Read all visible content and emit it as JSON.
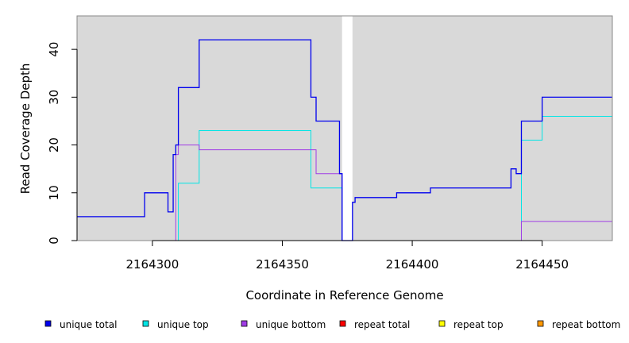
{
  "chart_data": {
    "type": "line",
    "xlabel": "Coordinate in Reference Genome",
    "ylabel": "Read Coverage Depth",
    "xlim": [
      2164271,
      2164477
    ],
    "ylim": [
      0,
      47
    ],
    "x_ticks": [
      2164300,
      2164350,
      2164400,
      2164450
    ],
    "y_ticks": [
      0,
      10,
      20,
      30,
      40
    ],
    "gap": [
      2164373,
      2164377
    ],
    "colors": {
      "background": "#d9d9d9",
      "gap": "#ffffff",
      "unique_total": "#0000ee",
      "unique_top": "#00e5e5",
      "unique_bottom": "#a03ce6",
      "repeat_total": "#ff0000",
      "repeat_top": "#ffff00",
      "repeat_bottom": "#ff9900"
    },
    "series": [
      {
        "name": "unique total",
        "color": "#0000ee",
        "width": 1.3,
        "points": [
          [
            2164271,
            5
          ],
          [
            2164297,
            5
          ],
          [
            2164297,
            10
          ],
          [
            2164306,
            10
          ],
          [
            2164306,
            6
          ],
          [
            2164308,
            6
          ],
          [
            2164308,
            18
          ],
          [
            2164309,
            18
          ],
          [
            2164309,
            20
          ],
          [
            2164310,
            20
          ],
          [
            2164310,
            32
          ],
          [
            2164318,
            32
          ],
          [
            2164318,
            42
          ],
          [
            2164361,
            42
          ],
          [
            2164361,
            30
          ],
          [
            2164363,
            30
          ],
          [
            2164363,
            25
          ],
          [
            2164372,
            25
          ],
          [
            2164372,
            14
          ],
          [
            2164373,
            14
          ],
          [
            2164373,
            0
          ],
          [
            2164377,
            0
          ],
          [
            2164377,
            8
          ],
          [
            2164378,
            8
          ],
          [
            2164378,
            9
          ],
          [
            2164394,
            9
          ],
          [
            2164394,
            10
          ],
          [
            2164407,
            10
          ],
          [
            2164407,
            11
          ],
          [
            2164438,
            11
          ],
          [
            2164438,
            15
          ],
          [
            2164440,
            15
          ],
          [
            2164440,
            14
          ],
          [
            2164442,
            14
          ],
          [
            2164442,
            25
          ],
          [
            2164450,
            25
          ],
          [
            2164450,
            30
          ],
          [
            2164477,
            30
          ]
        ]
      },
      {
        "name": "unique top",
        "color": "#00e5e5",
        "width": 1,
        "points": [
          [
            2164271,
            0
          ],
          [
            2164310,
            0
          ],
          [
            2164310,
            12
          ],
          [
            2164318,
            12
          ],
          [
            2164318,
            23
          ],
          [
            2164361,
            23
          ],
          [
            2164361,
            11
          ],
          [
            2164373,
            11
          ],
          [
            2164373,
            0
          ],
          [
            2164442,
            0
          ],
          [
            2164442,
            21
          ],
          [
            2164450,
            21
          ],
          [
            2164450,
            26
          ],
          [
            2164477,
            26
          ]
        ]
      },
      {
        "name": "unique bottom",
        "color": "#a03ce6",
        "width": 1,
        "points": [
          [
            2164309,
            0
          ],
          [
            2164309,
            18
          ],
          [
            2164310,
            18
          ],
          [
            2164310,
            20
          ],
          [
            2164318,
            20
          ],
          [
            2164318,
            19
          ],
          [
            2164363,
            19
          ],
          [
            2164363,
            14
          ],
          [
            2164373,
            14
          ],
          [
            2164373,
            0
          ],
          [
            2164442,
            0
          ],
          [
            2164442,
            4
          ],
          [
            2164477,
            4
          ]
        ]
      },
      {
        "name": "repeat total",
        "color": "#ff0000",
        "width": 1,
        "points": [
          [
            2164271,
            0
          ],
          [
            2164373,
            0
          ],
          [
            2164377,
            0
          ],
          [
            2164477,
            0
          ]
        ]
      },
      {
        "name": "repeat top",
        "color": "#ffff00",
        "width": 1,
        "points": [
          [
            2164271,
            0
          ],
          [
            2164373,
            0
          ],
          [
            2164377,
            0
          ],
          [
            2164477,
            0
          ]
        ]
      },
      {
        "name": "repeat bottom",
        "color": "#ff9900",
        "width": 1,
        "points": [
          [
            2164271,
            0
          ],
          [
            2164373,
            0
          ],
          [
            2164377,
            0
          ],
          [
            2164477,
            0
          ]
        ]
      }
    ],
    "legend": [
      {
        "label": "unique total",
        "color": "#0000ee"
      },
      {
        "label": "unique top",
        "color": "#00e5e5"
      },
      {
        "label": "unique bottom",
        "color": "#a03ce6"
      },
      {
        "label": "repeat total",
        "color": "#ff0000"
      },
      {
        "label": "repeat top",
        "color": "#ffff00"
      },
      {
        "label": "repeat bottom",
        "color": "#ff9900"
      }
    ],
    "legend_position": "bottom"
  }
}
